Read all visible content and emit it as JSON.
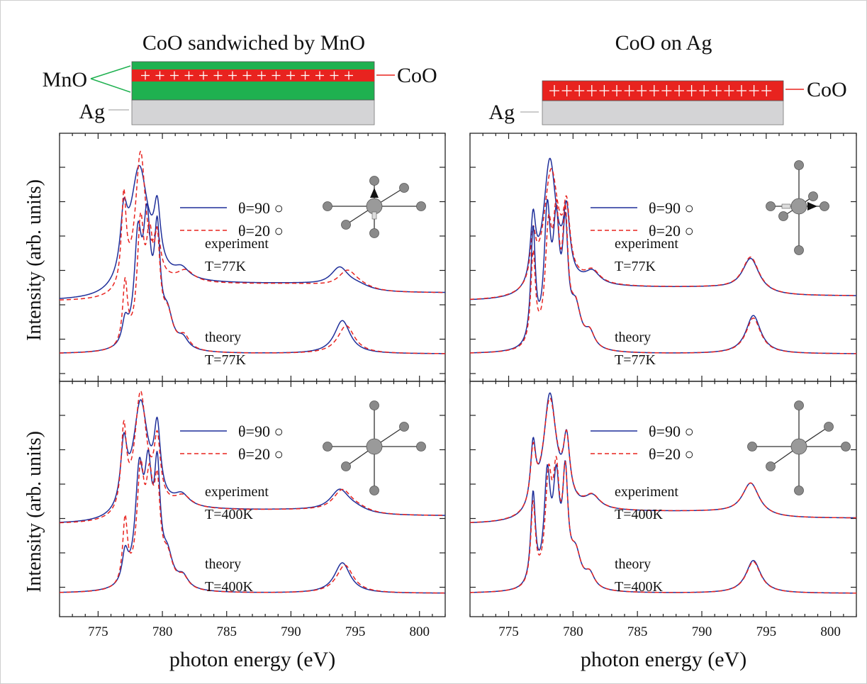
{
  "figure": {
    "x_axis_label": "photon energy (eV)",
    "y_axis_label": "Intensity (arb. units)"
  },
  "panels": [
    {
      "title": "CoO sandwiched by MnO",
      "sample": {
        "layers": [
          "MnO",
          "CoO",
          "Ag"
        ],
        "film_labels": [
          "MnO",
          "CoO"
        ],
        "substrate_label": "Ag",
        "colors": {
          "MnO": "#1fb150",
          "CoO": "#e8231f",
          "Ag": "#d4d4d6"
        }
      },
      "legend": [
        "θ=90 ○",
        "θ=20 ○"
      ]
    },
    {
      "title": "CoO on Ag",
      "sample": {
        "layers": [
          "CoO",
          "Ag"
        ],
        "film_labels": [
          "CoO"
        ],
        "substrate_label": "Ag",
        "colors": {
          "CoO": "#e8231f",
          "Ag": "#d4d4d6"
        }
      },
      "legend": [
        "θ=90 ○",
        "θ=20 ○"
      ]
    }
  ],
  "chart_data": [
    {
      "type": "line",
      "title": "CoO sandwiched by MnO",
      "row": "T=77K",
      "xlabel": "photon energy (eV)",
      "ylabel": "Intensity (arb. units)",
      "xlim": [
        772,
        802
      ],
      "xticks": [
        775,
        780,
        785,
        790,
        795,
        800
      ],
      "legend_placement": "upper-middle",
      "legend": [
        "θ=90 ○",
        "θ=20 ○"
      ],
      "molecule_icon": "octahedron-spin-up",
      "curve_groups": [
        {
          "label": "experiment",
          "temperature": "T=77K",
          "series": [
            {
              "name": "θ=90 ○",
              "color": "#1f2f9a",
              "style": "solid",
              "base": 0.2,
              "tail": 0.52,
              "step": 0.66,
              "peaks": [
                [
                  777.0,
                  2.2,
                  0.32
                ],
                [
                  778.2,
                  4.6,
                  0.85
                ],
                [
                  779.6,
                  2.2,
                  0.3
                ],
                [
                  781.5,
                  0.4,
                  0.7
                ],
                [
                  793.8,
                  0.8,
                  0.85
                ],
                [
                  795.2,
                  0.2,
                  1.2
                ]
              ]
            },
            {
              "name": "θ=20 ○",
              "color": "#e8231f",
              "style": "dashed",
              "base": 0.2,
              "tail": 0.52,
              "step": 0.66,
              "peaks": [
                [
                  777.0,
                  3.5,
                  0.22
                ],
                [
                  778.3,
                  5.2,
                  0.48
                ],
                [
                  779.6,
                  1.6,
                  0.3
                ],
                [
                  781.8,
                  0.45,
                  0.8
                ],
                [
                  794.4,
                  0.72,
                  0.9
                ],
                [
                  795.4,
                  0.15,
                  1.2
                ]
              ]
            }
          ]
        },
        {
          "label": "theory",
          "temperature": "T=77K",
          "series": [
            {
              "name": "θ=90 ○",
              "color": "#1f2f9a",
              "style": "solid",
              "base": 0.6,
              "tail": 0.6,
              "step": 0.0,
              "peaks": [
                [
                  777.1,
                  0.9,
                  0.28
                ],
                [
                  778.1,
                  4.0,
                  0.35
                ],
                [
                  778.8,
                  4.5,
                  0.35
                ],
                [
                  779.6,
                  4.1,
                  0.28
                ],
                [
                  780.4,
                  1.2,
                  0.5
                ],
                [
                  781.6,
                  0.4,
                  0.5
                ],
                [
                  794.0,
                  1.3,
                  0.75
                ]
              ]
            },
            {
              "name": "θ=20 ○",
              "color": "#e8231f",
              "style": "dashed",
              "base": 0.6,
              "tail": 0.6,
              "step": 0.0,
              "peaks": [
                [
                  777.1,
                  2.5,
                  0.23
                ],
                [
                  778.3,
                  4.5,
                  0.32
                ],
                [
                  779.0,
                  3.6,
                  0.35
                ],
                [
                  779.6,
                  3.4,
                  0.28
                ],
                [
                  780.4,
                  1.2,
                  0.5
                ],
                [
                  781.7,
                  0.5,
                  0.5
                ],
                [
                  794.3,
                  1.1,
                  0.8
                ]
              ]
            }
          ]
        }
      ]
    },
    {
      "type": "line",
      "title": "CoO on Ag",
      "row": "T=77K",
      "xlabel": "photon energy (eV)",
      "ylabel": "Intensity (arb. units)",
      "xlim": [
        772,
        802
      ],
      "xticks": [
        775,
        780,
        785,
        790,
        795,
        800
      ],
      "legend_placement": "upper-middle",
      "legend": [
        "θ=90 ○",
        "θ=20 ○"
      ],
      "molecule_icon": "octahedron-spin-in-plane",
      "curve_groups": [
        {
          "label": "experiment",
          "temperature": "T=77K",
          "series": [
            {
              "name": "θ=90 ○",
              "color": "#1f2f9a",
              "style": "solid",
              "base": 0.2,
              "tail": 0.4,
              "step": 0.52,
              "peaks": [
                [
                  776.9,
                  2.5,
                  0.25
                ],
                [
                  778.2,
                  5.0,
                  0.6
                ],
                [
                  779.5,
                  2.5,
                  0.3
                ],
                [
                  781.5,
                  0.5,
                  0.7
                ],
                [
                  793.8,
                  1.35,
                  0.8
                ]
              ]
            },
            {
              "name": "θ=20 ○",
              "color": "#e8231f",
              "style": "dashed",
              "base": 0.2,
              "tail": 0.4,
              "step": 0.52,
              "peaks": [
                [
                  776.9,
                  1.8,
                  0.25
                ],
                [
                  778.3,
                  4.6,
                  0.7
                ],
                [
                  779.5,
                  2.4,
                  0.3
                ],
                [
                  781.5,
                  0.5,
                  0.7
                ],
                [
                  793.8,
                  1.4,
                  0.8
                ]
              ]
            }
          ]
        },
        {
          "label": "theory",
          "temperature": "T=77K",
          "series": [
            {
              "name": "θ=90 ○",
              "color": "#1f2f9a",
              "style": "solid",
              "base": 0.6,
              "tail": 0.6,
              "step": 0.0,
              "peaks": [
                [
                  776.9,
                  4.5,
                  0.22
                ],
                [
                  778.0,
                  5.0,
                  0.3
                ],
                [
                  778.7,
                  4.3,
                  0.3
                ],
                [
                  779.4,
                  4.2,
                  0.25
                ],
                [
                  780.2,
                  1.5,
                  0.5
                ],
                [
                  781.3,
                  0.6,
                  0.45
                ],
                [
                  794.0,
                  1.5,
                  0.7
                ]
              ]
            },
            {
              "name": "θ=20 ○",
              "color": "#e8231f",
              "style": "dashed",
              "base": 0.6,
              "tail": 0.6,
              "step": 0.0,
              "peaks": [
                [
                  776.9,
                  3.6,
                  0.22
                ],
                [
                  778.1,
                  4.2,
                  0.32
                ],
                [
                  778.7,
                  4.4,
                  0.3
                ],
                [
                  779.4,
                  4.5,
                  0.25
                ],
                [
                  780.2,
                  1.5,
                  0.5
                ],
                [
                  781.3,
                  0.6,
                  0.45
                ],
                [
                  794.0,
                  1.4,
                  0.7
                ]
              ]
            }
          ]
        }
      ]
    },
    {
      "type": "line",
      "title": "CoO sandwiched by MnO",
      "row": "T=400K",
      "xlabel": "photon energy (eV)",
      "ylabel": "Intensity (arb. units)",
      "xlim": [
        772,
        802
      ],
      "xticks": [
        775,
        780,
        785,
        790,
        795,
        800
      ],
      "legend_placement": "upper-middle",
      "legend": [
        "θ=90 ○",
        "θ=20 ○"
      ],
      "molecule_icon": "octahedron",
      "curve_groups": [
        {
          "label": "experiment",
          "temperature": "T=400K",
          "series": [
            {
              "name": "θ=90 ○",
              "color": "#1f2f9a",
              "style": "solid",
              "base": 0.2,
              "tail": 0.55,
              "step": 0.58,
              "peaks": [
                [
                  777.0,
                  2.6,
                  0.3
                ],
                [
                  778.3,
                  4.6,
                  0.7
                ],
                [
                  779.6,
                  2.9,
                  0.3
                ],
                [
                  781.5,
                  0.5,
                  0.7
                ],
                [
                  793.8,
                  0.95,
                  0.9
                ],
                [
                  795.0,
                  0.2,
                  1.2
                ]
              ]
            },
            {
              "name": "θ=20 ○",
              "color": "#e8231f",
              "style": "dashed",
              "base": 0.2,
              "tail": 0.55,
              "step": 0.58,
              "peaks": [
                [
                  777.0,
                  3.4,
                  0.25
                ],
                [
                  778.3,
                  5.0,
                  0.55
                ],
                [
                  779.6,
                  2.6,
                  0.3
                ],
                [
                  781.6,
                  0.5,
                  0.8
                ],
                [
                  794.0,
                  0.95,
                  0.9
                ],
                [
                  795.2,
                  0.2,
                  1.2
                ]
              ]
            }
          ]
        },
        {
          "label": "theory",
          "temperature": "T=400K",
          "series": [
            {
              "name": "θ=90 ○",
              "color": "#1f2f9a",
              "style": "solid",
              "base": 0.6,
              "tail": 0.6,
              "step": 0.0,
              "peaks": [
                [
                  777.1,
                  1.3,
                  0.28
                ],
                [
                  778.2,
                  4.6,
                  0.38
                ],
                [
                  778.9,
                  4.3,
                  0.35
                ],
                [
                  779.6,
                  4.5,
                  0.28
                ],
                [
                  780.4,
                  1.2,
                  0.5
                ],
                [
                  781.6,
                  0.5,
                  0.5
                ],
                [
                  794.0,
                  1.3,
                  0.75
                ]
              ]
            },
            {
              "name": "θ=20 ○",
              "color": "#e8231f",
              "style": "dashed",
              "base": 0.6,
              "tail": 0.6,
              "step": 0.0,
              "peaks": [
                [
                  777.1,
                  2.8,
                  0.23
                ],
                [
                  778.3,
                  4.6,
                  0.35
                ],
                [
                  779.0,
                  3.8,
                  0.35
                ],
                [
                  779.6,
                  3.6,
                  0.28
                ],
                [
                  780.4,
                  1.2,
                  0.5
                ],
                [
                  781.6,
                  0.5,
                  0.5
                ],
                [
                  794.2,
                  1.2,
                  0.8
                ]
              ]
            }
          ]
        }
      ]
    },
    {
      "type": "line",
      "title": "CoO on Ag",
      "row": "T=400K",
      "xlabel": "photon energy (eV)",
      "ylabel": "Intensity (arb. units)",
      "xlim": [
        772,
        802
      ],
      "xticks": [
        775,
        780,
        785,
        790,
        795,
        800
      ],
      "legend_placement": "upper-middle",
      "legend": [
        "θ=90 ○",
        "θ=20 ○"
      ],
      "molecule_icon": "octahedron",
      "curve_groups": [
        {
          "label": "experiment",
          "temperature": "T=400K",
          "series": [
            {
              "name": "θ=90 ○",
              "color": "#1f2f9a",
              "style": "solid",
              "base": 0.2,
              "tail": 0.45,
              "step": 0.52,
              "peaks": [
                [
                  776.9,
                  2.6,
                  0.25
                ],
                [
                  778.2,
                  5.0,
                  0.6
                ],
                [
                  779.5,
                  2.6,
                  0.3
                ],
                [
                  781.5,
                  0.55,
                  0.7
                ],
                [
                  793.8,
                  1.4,
                  0.8
                ]
              ]
            },
            {
              "name": "θ=20 ○",
              "color": "#e8231f",
              "style": "dashed",
              "base": 0.2,
              "tail": 0.45,
              "step": 0.52,
              "peaks": [
                [
                  776.9,
                  2.3,
                  0.25
                ],
                [
                  778.2,
                  4.8,
                  0.65
                ],
                [
                  779.5,
                  2.5,
                  0.3
                ],
                [
                  781.5,
                  0.55,
                  0.7
                ],
                [
                  793.8,
                  1.4,
                  0.8
                ]
              ]
            }
          ]
        },
        {
          "label": "theory",
          "temperature": "T=400K",
          "series": [
            {
              "name": "θ=90 ○",
              "color": "#1f2f9a",
              "style": "solid",
              "base": 0.6,
              "tail": 0.6,
              "step": 0.0,
              "peaks": [
                [
                  776.9,
                  3.9,
                  0.22
                ],
                [
                  778.0,
                  4.5,
                  0.3
                ],
                [
                  778.7,
                  4.1,
                  0.3
                ],
                [
                  779.4,
                  4.4,
                  0.25
                ],
                [
                  780.2,
                  1.4,
                  0.5
                ],
                [
                  781.3,
                  0.6,
                  0.45
                ],
                [
                  794.0,
                  1.4,
                  0.7
                ]
              ]
            },
            {
              "name": "θ=20 ○",
              "color": "#e8231f",
              "style": "dashed",
              "base": 0.6,
              "tail": 0.6,
              "step": 0.0,
              "peaks": [
                [
                  776.9,
                  3.5,
                  0.22
                ],
                [
                  778.1,
                  4.3,
                  0.32
                ],
                [
                  778.7,
                  4.2,
                  0.3
                ],
                [
                  779.4,
                  4.3,
                  0.25
                ],
                [
                  780.2,
                  1.4,
                  0.5
                ],
                [
                  781.3,
                  0.6,
                  0.45
                ],
                [
                  794.0,
                  1.35,
                  0.7
                ]
              ]
            }
          ]
        }
      ]
    }
  ]
}
